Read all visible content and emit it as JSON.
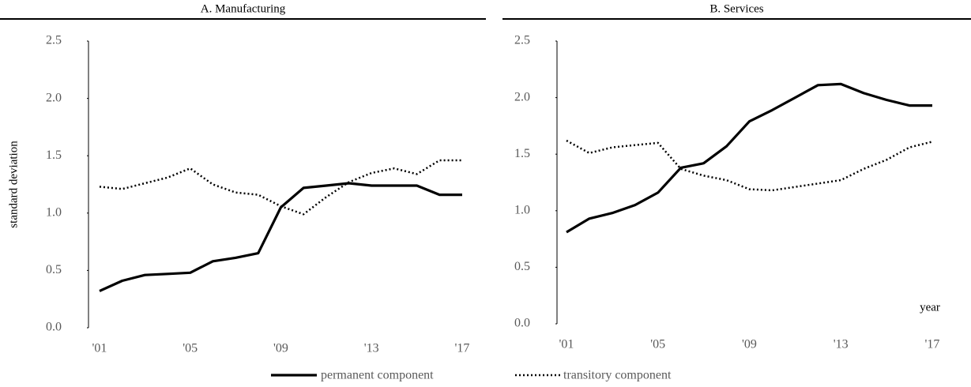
{
  "chart_data": [
    {
      "type": "line",
      "title": "A. Manufacturing",
      "ylabel": "standard deviation",
      "categories": [
        "'01",
        null,
        null,
        null,
        "'05",
        null,
        null,
        null,
        "'09",
        null,
        null,
        null,
        "'13",
        null,
        null,
        null,
        "'17"
      ],
      "series": [
        {
          "name": "permanent component",
          "color": "#000000",
          "style": "solid",
          "values": [
            0.32,
            0.41,
            0.46,
            0.47,
            0.48,
            0.58,
            0.61,
            0.65,
            1.05,
            1.22,
            1.24,
            1.26,
            1.24,
            1.24,
            1.24,
            1.16,
            1.16
          ]
        },
        {
          "name": "transitory component",
          "color": "#000000",
          "style": "dotted",
          "values": [
            1.23,
            1.21,
            1.26,
            1.31,
            1.39,
            1.25,
            1.18,
            1.16,
            1.06,
            0.99,
            1.14,
            1.27,
            1.35,
            1.39,
            1.34,
            1.46,
            1.46
          ]
        }
      ],
      "ylim": [
        0,
        2.5
      ],
      "yticks": [
        {
          "value": 0,
          "label": "0.0"
        },
        0.5,
        {
          "value": 1,
          "label": "1.0"
        },
        1.5,
        {
          "value": 2,
          "label": "2.0"
        },
        2.5
      ]
    },
    {
      "type": "line",
      "title": "B. Services",
      "xlabel": "year",
      "categories": [
        "'01",
        null,
        null,
        null,
        "'05",
        null,
        null,
        null,
        "'09",
        null,
        null,
        null,
        "'13",
        null,
        null,
        null,
        "'17"
      ],
      "series": [
        {
          "color": "#000000",
          "style": "solid",
          "values": [
            0.81,
            0.93,
            0.98,
            1.05,
            1.16,
            1.38,
            1.42,
            1.57,
            1.79,
            1.89,
            2.0,
            2.11,
            2.12,
            2.04,
            1.98,
            1.93,
            1.93
          ]
        },
        {
          "color": "#000000",
          "style": "dotted",
          "values": [
            1.62,
            1.51,
            1.56,
            1.58,
            1.6,
            1.37,
            1.31,
            1.27,
            1.19,
            1.18,
            1.21,
            1.24,
            1.27,
            1.37,
            1.45,
            1.56,
            1.61
          ]
        }
      ],
      "ylim": [
        0,
        2.5
      ],
      "yticks": [
        {
          "value": 0,
          "label": "0.0"
        },
        0.5,
        {
          "value": 1,
          "label": "1.0"
        },
        1.5,
        {
          "value": 2,
          "label": "2.0"
        },
        2.5
      ]
    }
  ]
}
